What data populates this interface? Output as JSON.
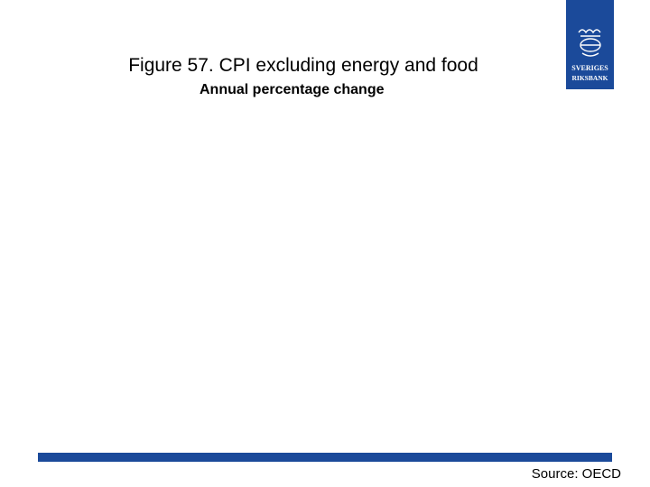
{
  "header": {
    "title": "Figure 57. CPI excluding energy and food",
    "subtitle": "Annual percentage change"
  },
  "logo": {
    "line1": "SVERIGES",
    "line2": "RIKSBANK"
  },
  "footer": {
    "source": "Source: OECD"
  }
}
